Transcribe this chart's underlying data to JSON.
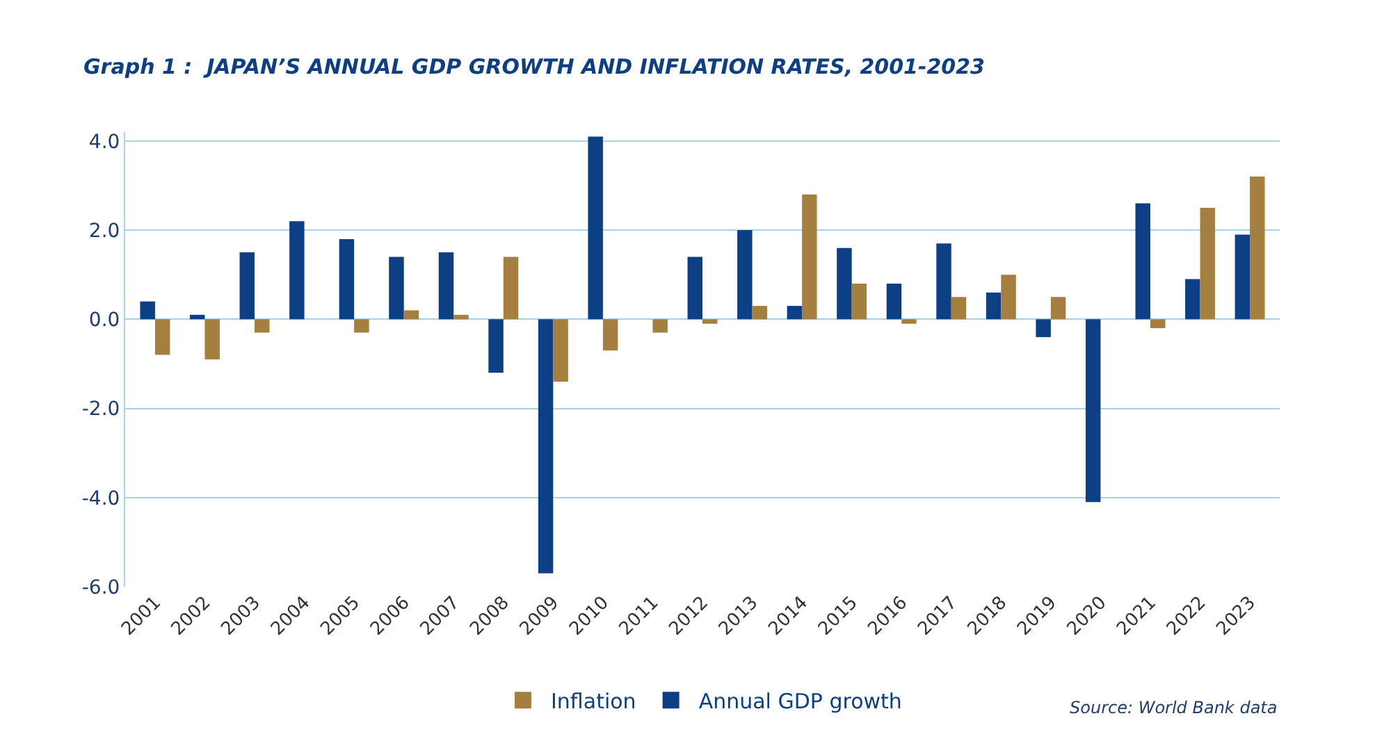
{
  "chart_data": {
    "type": "bar",
    "title": "Graph 1 :  JAPAN’S ANNUAL GDP GROWTH AND INFLATION RATES, 2001-2023",
    "categories": [
      "2001",
      "2002",
      "2003",
      "2004",
      "2005",
      "2006",
      "2007",
      "2008",
      "2009",
      "2010",
      "2011",
      "2012",
      "2013",
      "2014",
      "2015",
      "2016",
      "2017",
      "2018",
      "2019",
      "2020",
      "2021",
      "2022",
      "2023"
    ],
    "series": [
      {
        "name": "Annual GDP growth",
        "color": "#0d3f84",
        "values": [
          0.4,
          0.1,
          1.5,
          2.2,
          1.8,
          1.4,
          1.5,
          -1.2,
          -5.7,
          4.1,
          0.0,
          1.4,
          2.0,
          0.3,
          1.6,
          0.8,
          1.7,
          0.6,
          -0.4,
          -4.1,
          2.6,
          0.9,
          1.9
        ]
      },
      {
        "name": "Inflation",
        "color": "#a57f3f",
        "values": [
          -0.8,
          -0.9,
          -0.3,
          0.0,
          -0.3,
          0.2,
          0.1,
          1.4,
          -1.4,
          -0.7,
          -0.3,
          -0.1,
          0.3,
          2.8,
          0.8,
          -0.1,
          0.5,
          1.0,
          0.5,
          0.0,
          -0.2,
          2.5,
          3.2
        ]
      }
    ],
    "ylim": [
      -6.0,
      4.2
    ],
    "yticks": [
      {
        "value": -6,
        "label": "-6.0"
      },
      {
        "value": -4,
        "label": "-4.0"
      },
      {
        "value": -2,
        "label": "-2.0"
      },
      {
        "value": 0,
        "label": "0.0"
      },
      {
        "value": 2,
        "label": "2.0"
      },
      {
        "value": 4,
        "label": "4.0"
      }
    ],
    "grid": "y",
    "legend": "bottom",
    "annotations": [
      "Source: World Bank data"
    ]
  }
}
